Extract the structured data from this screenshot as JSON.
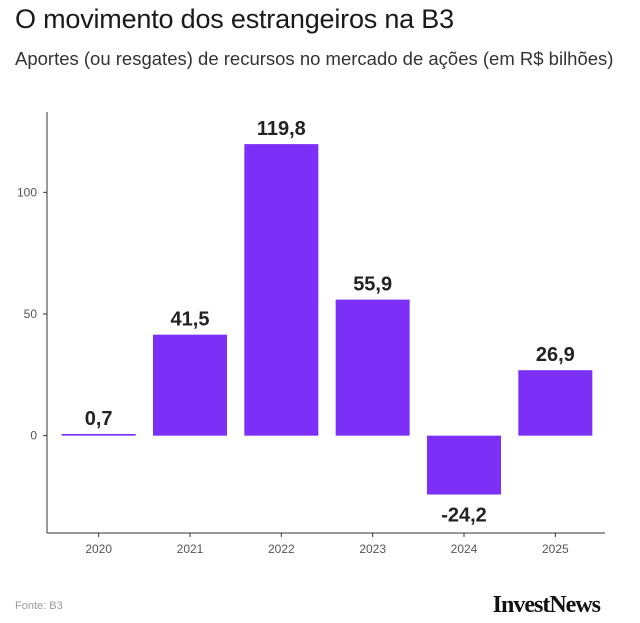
{
  "header": {
    "title": "O movimento dos estrangeiros na B3",
    "subtitle": "Aportes (ou resgates) de recursos no mercado de ações (em R$ bilhões)"
  },
  "footer": {
    "source": "Fonte: B3",
    "brand": "InvestNews"
  },
  "colors": {
    "bar": "#7b2ff7",
    "axis": "#333333",
    "tick_text": "#555555",
    "label_text": "#222222"
  },
  "chart_data": {
    "type": "bar",
    "title": "O movimento dos estrangeiros na B3",
    "subtitle": "Aportes (ou resgates) de recursos no mercado de ações (em R$ bilhões)",
    "xlabel": "",
    "ylabel": "",
    "categories": [
      "2020",
      "2021",
      "2022",
      "2023",
      "2024",
      "2025"
    ],
    "values": [
      0.7,
      41.5,
      119.8,
      55.9,
      -24.2,
      26.9
    ],
    "value_labels": [
      "0,7",
      "41,5",
      "119,8",
      "55,9",
      "-24,2",
      "26,9"
    ],
    "yticks": [
      0,
      50,
      100
    ],
    "ylim": [
      -40,
      133
    ],
    "grid": false,
    "legend": "none"
  }
}
